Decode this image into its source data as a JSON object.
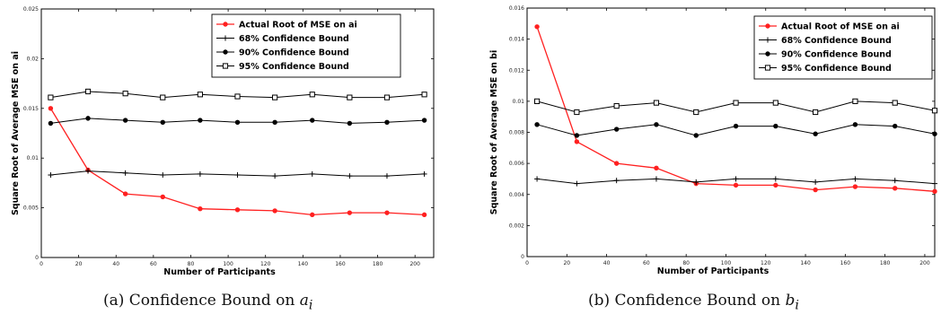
{
  "chart_data": [
    {
      "type": "line",
      "caption": "(a) Confidence Bound on ",
      "caption_math": "a",
      "caption_sub": "i",
      "xlabel": "Number of Participants",
      "ylabel": "Square Root of Average MSE on ai",
      "xlim": [
        0,
        210
      ],
      "ylim": [
        0,
        0.025
      ],
      "x_ticks": [
        "0",
        "20",
        "40",
        "60",
        "80",
        "100",
        "120",
        "140",
        "160",
        "180",
        "200"
      ],
      "y_ticks": [
        "0",
        "0.005",
        "0.01",
        "0.015",
        "0.02",
        "0.025"
      ],
      "legend_position": "top-right",
      "x": [
        5,
        25,
        45,
        65,
        85,
        105,
        125,
        145,
        165,
        185,
        205
      ],
      "series": [
        {
          "name": "Actual Root of MSE on ai",
          "color": "#ff2020",
          "marker": "dot",
          "values": [
            0.015,
            0.0088,
            0.0064,
            0.0061,
            0.0049,
            0.0048,
            0.0047,
            0.0043,
            0.0045,
            0.0045,
            0.0043
          ]
        },
        {
          "name": "68% Confidence Bound",
          "color": "#000000",
          "marker": "plus",
          "values": [
            0.0083,
            0.0087,
            0.0085,
            0.0083,
            0.0084,
            0.0083,
            0.0082,
            0.0084,
            0.0082,
            0.0082,
            0.0084
          ]
        },
        {
          "name": "90% Confidence Bound",
          "color": "#000000",
          "marker": "dot",
          "values": [
            0.0135,
            0.014,
            0.0138,
            0.0136,
            0.0138,
            0.0136,
            0.0136,
            0.0138,
            0.0135,
            0.0136,
            0.0138
          ]
        },
        {
          "name": "95% Confidence Bound",
          "color": "#000000",
          "marker": "square",
          "values": [
            0.0161,
            0.0167,
            0.0165,
            0.0161,
            0.0164,
            0.0162,
            0.0161,
            0.0164,
            0.0161,
            0.0161,
            0.0164
          ]
        }
      ]
    },
    {
      "type": "line",
      "caption": "(b) Confidence Bound on ",
      "caption_math": "b",
      "caption_sub": "i",
      "xlabel": "Number of Participants",
      "ylabel": "Square Root of Average MSE on bi",
      "xlim": [
        0,
        205
      ],
      "ylim": [
        0,
        0.016
      ],
      "x_ticks": [
        "0",
        "20",
        "40",
        "60",
        "80",
        "100",
        "120",
        "140",
        "160",
        "180",
        "200"
      ],
      "y_ticks": [
        "0",
        "0.002",
        "0.004",
        "0.006",
        "0.008",
        "0.01",
        "0.012",
        "0.014",
        "0.016"
      ],
      "legend_position": "top-right",
      "x": [
        5,
        25,
        45,
        65,
        85,
        105,
        125,
        145,
        165,
        185,
        205
      ],
      "series": [
        {
          "name": "Actual Root of MSE on ai",
          "color": "#ff2020",
          "marker": "dot",
          "values": [
            0.0148,
            0.0074,
            0.006,
            0.0057,
            0.0047,
            0.0046,
            0.0046,
            0.0043,
            0.0045,
            0.0044,
            0.0042
          ]
        },
        {
          "name": "68% Confidence Bound",
          "color": "#000000",
          "marker": "plus",
          "values": [
            0.005,
            0.0047,
            0.0049,
            0.005,
            0.0048,
            0.005,
            0.005,
            0.0048,
            0.005,
            0.0049,
            0.0047
          ]
        },
        {
          "name": "90% Confidence Bound",
          "color": "#000000",
          "marker": "dot",
          "values": [
            0.0085,
            0.0078,
            0.0082,
            0.0085,
            0.0078,
            0.0084,
            0.0084,
            0.0079,
            0.0085,
            0.0084,
            0.0079
          ]
        },
        {
          "name": "95% Confidence Bound",
          "color": "#000000",
          "marker": "square",
          "values": [
            0.01,
            0.0093,
            0.0097,
            0.0099,
            0.0093,
            0.0099,
            0.0099,
            0.0093,
            0.01,
            0.0099,
            0.0094
          ]
        }
      ]
    }
  ]
}
